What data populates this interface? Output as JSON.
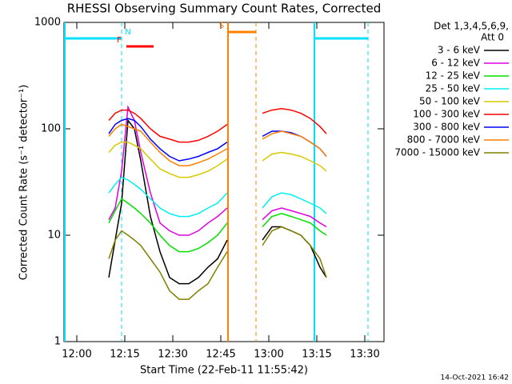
{
  "chart_data": {
    "type": "line",
    "title": "RHESSI Observing Summary Count Rates, Corrected",
    "x_label": "Start Time (22-Feb-11 11:55:42)",
    "y_label": "Corrected Count Rate (s⁻¹ detector⁻¹)",
    "legend_header": [
      "Det 1,3,4,5,6,9,",
      "Att 0"
    ],
    "footer": "14-Oct-2021 16:42",
    "log_y": true,
    "xlim": [
      "11:56",
      "13:36"
    ],
    "xticks": [
      "12:00",
      "12:15",
      "12:30",
      "12:45",
      "13:00",
      "13:15",
      "13:30"
    ],
    "ylim": [
      1,
      1000
    ],
    "yticks": [
      1,
      10,
      100,
      1000
    ],
    "x": [
      "12:10",
      "12:12",
      "12:14",
      "12:16",
      "12:18",
      "12:20",
      "12:23",
      "12:26",
      "12:29",
      "12:32",
      "12:35",
      "12:38",
      "12:41",
      "12:44",
      "12:47",
      "12:53",
      "12:58",
      "13:01",
      "13:04",
      "13:07",
      "13:10",
      "13:13",
      "13:16",
      "13:18"
    ],
    "series": [
      {
        "name": "3 - 6 keV",
        "color": "#000000",
        "values": [
          4,
          9,
          20,
          120,
          100,
          50,
          15,
          7,
          4,
          3.5,
          3.5,
          4,
          5,
          6,
          9,
          null,
          9,
          12,
          12,
          11,
          10,
          8,
          5,
          4
        ]
      },
      {
        "name": "6 - 12 keV",
        "color": "#e000e0",
        "values": [
          14,
          18,
          40,
          160,
          120,
          60,
          25,
          13,
          11,
          10,
          10,
          11,
          13,
          15,
          18,
          null,
          14,
          17,
          18,
          17,
          16,
          15,
          13,
          12
        ]
      },
      {
        "name": "12 - 25 keV",
        "color": "#00e000",
        "values": [
          13,
          17,
          22,
          20,
          18,
          16,
          13,
          10,
          8,
          7,
          7,
          7.5,
          8.5,
          10,
          13,
          null,
          12,
          15,
          16,
          15,
          14,
          13,
          11,
          10
        ]
      },
      {
        "name": "25 - 50 keV",
        "color": "#00f0f0",
        "values": [
          25,
          30,
          35,
          33,
          30,
          27,
          22,
          18,
          16,
          15,
          15,
          16,
          18,
          20,
          25,
          null,
          18,
          23,
          25,
          24,
          22,
          20,
          18,
          16
        ]
      },
      {
        "name": "50 - 100 keV",
        "color": "#d8c800",
        "values": [
          60,
          70,
          75,
          75,
          70,
          65,
          52,
          42,
          38,
          35,
          35,
          37,
          40,
          45,
          52,
          null,
          50,
          58,
          60,
          58,
          55,
          50,
          45,
          40
        ]
      },
      {
        "name": "100 - 300 keV",
        "color": "#ff0000",
        "values": [
          120,
          140,
          150,
          150,
          140,
          125,
          100,
          85,
          80,
          75,
          75,
          78,
          85,
          95,
          110,
          null,
          140,
          150,
          155,
          150,
          140,
          125,
          105,
          90
        ]
      },
      {
        "name": "300 - 800 keV",
        "color": "#0000ff",
        "values": [
          90,
          110,
          120,
          125,
          120,
          105,
          80,
          65,
          55,
          50,
          52,
          55,
          60,
          65,
          75,
          null,
          85,
          95,
          95,
          92,
          85,
          75,
          65,
          55
        ]
      },
      {
        "name": "800 - 7000 keV",
        "color": "#ff8000",
        "values": [
          85,
          100,
          110,
          105,
          100,
          95,
          75,
          60,
          50,
          45,
          45,
          48,
          52,
          58,
          65,
          null,
          80,
          90,
          95,
          90,
          85,
          75,
          65,
          55
        ]
      },
      {
        "name": "7000 - 15000 keV",
        "color": "#808000",
        "values": [
          6,
          9,
          11,
          10,
          9,
          8,
          6,
          4.5,
          3,
          2.5,
          2.5,
          3,
          3.5,
          5,
          7,
          null,
          8,
          11,
          12,
          11,
          10,
          8,
          6,
          4
        ]
      }
    ],
    "intervals": [
      {
        "label": "N",
        "start": "11:56",
        "end": "12:14",
        "color": "#00e0ff",
        "vlines": true
      },
      {
        "label": null,
        "start": "13:14",
        "end": "13:31",
        "color": "#00e0ff",
        "vlines": true
      },
      {
        "label": "S",
        "start": "12:47",
        "end": "12:56",
        "color": "#ff8000",
        "vlines": true
      },
      {
        "label": "F",
        "start": "12:15",
        "end": "12:24",
        "color": "#ff0000",
        "vlines": false
      }
    ]
  }
}
